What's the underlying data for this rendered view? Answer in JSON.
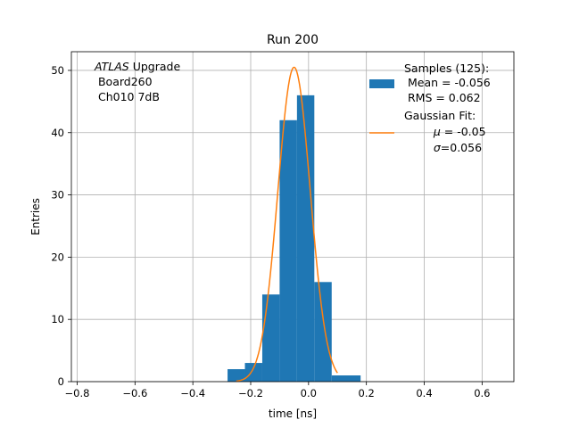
{
  "chart_data": {
    "type": "bar",
    "title": "Run 200",
    "xlabel": "time [ns]",
    "ylabel": "Entries",
    "xlim": [
      -0.82,
      0.71
    ],
    "ylim": [
      0,
      53
    ],
    "grid": true,
    "xticks": [
      -0.8,
      -0.6,
      -0.4,
      -0.2,
      0.0,
      0.2,
      0.4,
      0.6
    ],
    "xtick_labels": [
      "−0.8",
      "−0.6",
      "−0.4",
      "−0.2",
      "0.0",
      "0.2",
      "0.4",
      "0.6"
    ],
    "yticks": [
      0,
      10,
      20,
      30,
      40,
      50
    ],
    "ytick_labels": [
      "0",
      "10",
      "20",
      "30",
      "40",
      "50"
    ],
    "histogram": {
      "name": "Samples (125):",
      "color": "#1f77b4",
      "bin_edges": [
        -0.28,
        -0.22,
        -0.16,
        -0.1,
        -0.04,
        0.02,
        0.08
      ],
      "counts": [
        2,
        3,
        14,
        42,
        46,
        16,
        1
      ],
      "right_outlier_bin": [
        0.08,
        0.18
      ],
      "right_outlier_count": 1,
      "legend_mean": " Mean = -0.056",
      "legend_rms": " RMS = 0.062"
    },
    "fit": {
      "name": "Gaussian Fit:",
      "color": "#ff7f0e",
      "mu": -0.05,
      "sigma": 0.056,
      "amplitude": 50.5,
      "x_range": [
        -0.25,
        0.1
      ],
      "legend_mu_symbol": "μ",
      "legend_mu_value": " = -0.05",
      "legend_sigma_symbol": "σ",
      "legend_sigma_value": "=0.056"
    },
    "annotation": {
      "line1_italic": "ATLAS",
      "line1_rest": " Upgrade",
      "line2": " Board260",
      "line3": " Ch010 7dB"
    }
  }
}
